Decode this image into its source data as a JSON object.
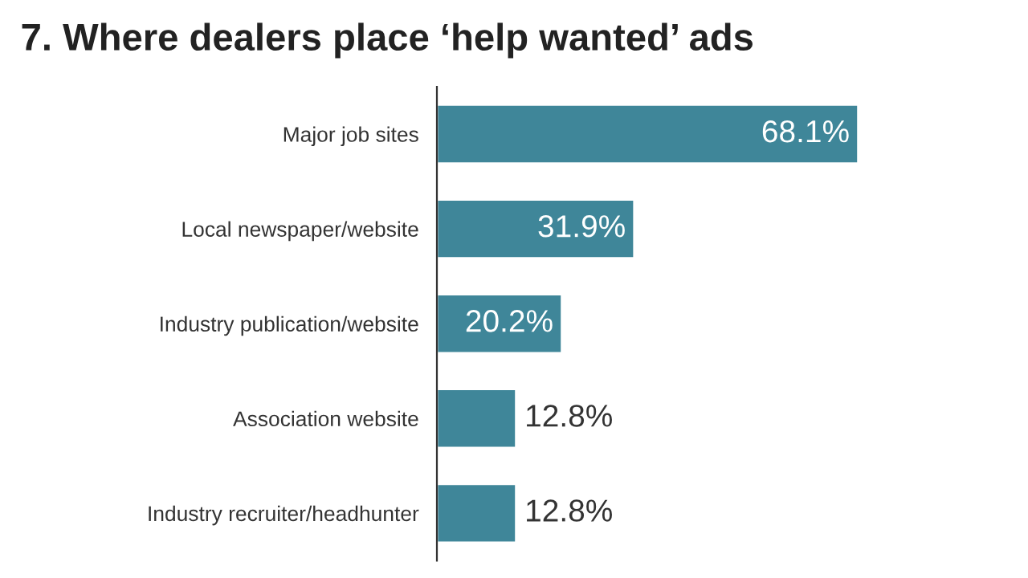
{
  "chart_data": {
    "type": "bar",
    "orientation": "horizontal",
    "title": "7. Where dealers place ‘help wanted’ ads",
    "categories": [
      "Major job sites",
      "Local newspaper/website",
      "Industry publication/website",
      "Association website",
      "Industry recruiter/headhunter"
    ],
    "values": [
      68.1,
      31.9,
      20.2,
      12.8,
      12.8
    ],
    "value_labels": [
      "68.1%",
      "31.9%",
      "20.2%",
      "12.8%",
      "12.8%"
    ],
    "color": "#3f8699",
    "grid": false
  }
}
